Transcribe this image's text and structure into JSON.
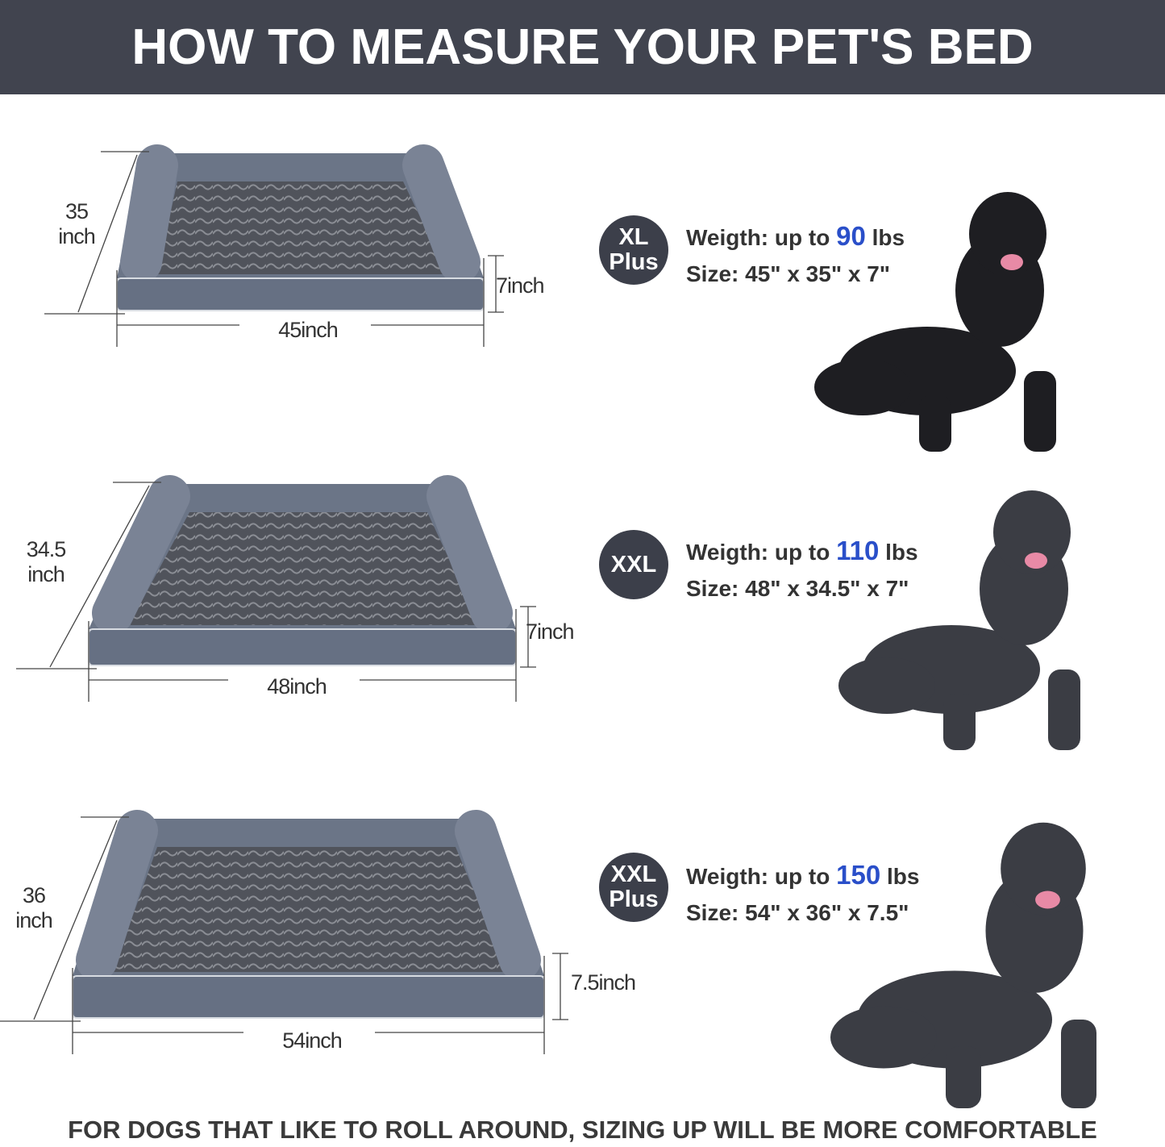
{
  "header": {
    "title": "HOW TO MEASURE YOUR PET'S BED"
  },
  "colors": {
    "header_bg": "#41444f",
    "accent_number": "#2a4fc9",
    "badge_bg": "#3c3f4a",
    "bed_fabric": "#6b7587",
    "bed_fur": "#4a4d55"
  },
  "sizes": [
    {
      "badge": [
        "XL",
        "Plus"
      ],
      "weight_prefix": "Weigth: up to ",
      "weight_value": "90",
      "weight_unit": " lbs",
      "size_text": "Size: 45\" x 35\" x 7\"",
      "width_label": "45inch",
      "depth_label": [
        "35",
        "inch"
      ],
      "height_label": "7inch",
      "dog": "black-shepherd-icon"
    },
    {
      "badge": [
        "XXL"
      ],
      "weight_prefix": "Weigth: up to ",
      "weight_value": "110",
      "weight_unit": " lbs",
      "size_text": "Size: 48\" x 34.5\" x 7\"",
      "width_label": "48inch",
      "depth_label": [
        "34.5",
        "inch"
      ],
      "height_label": "7inch",
      "dog": "great-dane-icon"
    },
    {
      "badge": [
        "XXL",
        "Plus"
      ],
      "weight_prefix": "Weigth: up to ",
      "weight_value": "150",
      "weight_unit": " lbs",
      "size_text": "Size: 54\" x 36\" x 7.5\"",
      "width_label": "54inch",
      "depth_label": [
        "36",
        "inch"
      ],
      "height_label": "7.5inch",
      "dog": "cane-corso-icon"
    }
  ],
  "footer": {
    "text": "FOR DOGS THAT LIKE TO ROLL AROUND, SIZING UP WILL BE MORE COMFORTABLE"
  }
}
